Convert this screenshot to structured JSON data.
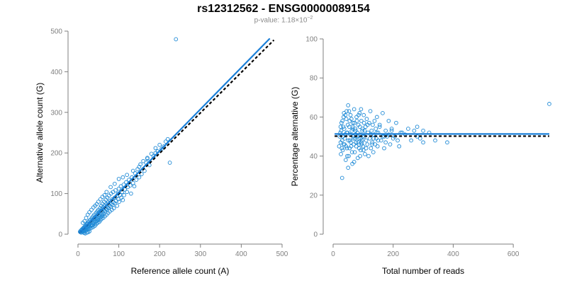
{
  "title": "rs12312562 - ENSG00000089154",
  "subtitle": {
    "prefix": "p-value: 1.18×10",
    "exponent": "−2"
  },
  "colors": {
    "points": "#1f8ad6",
    "fit_line": "#1a7fd8",
    "reference_line": "#000000",
    "axis": "#7f7f7f",
    "tick_label": "#808080"
  },
  "chart_data": [
    {
      "type": "scatter",
      "xlabel": "Reference allele count (A)",
      "ylabel": "Alternative allele count (G)",
      "xlim": [
        0,
        500
      ],
      "ylim": [
        0,
        500
      ],
      "xticks": [
        0,
        100,
        200,
        300,
        400,
        500
      ],
      "yticks": [
        0,
        100,
        200,
        300,
        400,
        500
      ],
      "grid": false,
      "points": [
        [
          5,
          6
        ],
        [
          6,
          5
        ],
        [
          7,
          9
        ],
        [
          8,
          4
        ],
        [
          9,
          10
        ],
        [
          10,
          7
        ],
        [
          10,
          12
        ],
        [
          11,
          8
        ],
        [
          12,
          14
        ],
        [
          12,
          6
        ],
        [
          13,
          11
        ],
        [
          14,
          9
        ],
        [
          14,
          16
        ],
        [
          15,
          12
        ],
        [
          15,
          6
        ],
        [
          16,
          18
        ],
        [
          17,
          13
        ],
        [
          17,
          8
        ],
        [
          18,
          20
        ],
        [
          18,
          15
        ],
        [
          19,
          10
        ],
        [
          20,
          22
        ],
        [
          20,
          14
        ],
        [
          21,
          17
        ],
        [
          22,
          25
        ],
        [
          22,
          11
        ],
        [
          23,
          19
        ],
        [
          24,
          27
        ],
        [
          24,
          15
        ],
        [
          25,
          21
        ],
        [
          26,
          12
        ],
        [
          26,
          30
        ],
        [
          27,
          23
        ],
        [
          28,
          18
        ],
        [
          28,
          33
        ],
        [
          29,
          25
        ],
        [
          30,
          14
        ],
        [
          30,
          28
        ],
        [
          31,
          36
        ],
        [
          32,
          20
        ],
        [
          32,
          30
        ],
        [
          33,
          24
        ],
        [
          34,
          40
        ],
        [
          34,
          16
        ],
        [
          35,
          28
        ],
        [
          36,
          35
        ],
        [
          36,
          22
        ],
        [
          37,
          44
        ],
        [
          38,
          30
        ],
        [
          38,
          18
        ],
        [
          39,
          38
        ],
        [
          40,
          26
        ],
        [
          40,
          48
        ],
        [
          41,
          33
        ],
        [
          42,
          21
        ],
        [
          42,
          42
        ],
        [
          43,
          30
        ],
        [
          44,
          52
        ],
        [
          44,
          36
        ],
        [
          45,
          25
        ],
        [
          46,
          45
        ],
        [
          46,
          32
        ],
        [
          47,
          56
        ],
        [
          48,
          40
        ],
        [
          48,
          28
        ],
        [
          49,
          50
        ],
        [
          50,
          35
        ],
        [
          50,
          60
        ],
        [
          51,
          44
        ],
        [
          52,
          30
        ],
        [
          52,
          54
        ],
        [
          53,
          40
        ],
        [
          54,
          64
        ],
        [
          54,
          46
        ],
        [
          55,
          34
        ],
        [
          56,
          58
        ],
        [
          56,
          42
        ],
        [
          57,
          70
        ],
        [
          58,
          50
        ],
        [
          58,
          38
        ],
        [
          59,
          62
        ],
        [
          60,
          46
        ],
        [
          60,
          75
        ],
        [
          61,
          54
        ],
        [
          62,
          40
        ],
        [
          62,
          66
        ],
        [
          63,
          50
        ],
        [
          64,
          80
        ],
        [
          65,
          58
        ],
        [
          66,
          44
        ],
        [
          66,
          70
        ],
        [
          67,
          56
        ],
        [
          68,
          85
        ],
        [
          69,
          62
        ],
        [
          70,
          48
        ],
        [
          70,
          74
        ],
        [
          71,
          60
        ],
        [
          72,
          90
        ],
        [
          73,
          66
        ],
        [
          74,
          52
        ],
        [
          74,
          78
        ],
        [
          75,
          64
        ],
        [
          76,
          95
        ],
        [
          77,
          70
        ],
        [
          78,
          56
        ],
        [
          79,
          82
        ],
        [
          80,
          68
        ],
        [
          81,
          100
        ],
        [
          82,
          74
        ],
        [
          83,
          60
        ],
        [
          84,
          86
        ],
        [
          85,
          72
        ],
        [
          86,
          104
        ],
        [
          87,
          78
        ],
        [
          88,
          64
        ],
        [
          90,
          90
        ],
        [
          91,
          76
        ],
        [
          92,
          108
        ],
        [
          93,
          82
        ],
        [
          95,
          94
        ],
        [
          96,
          70
        ],
        [
          98,
          100
        ],
        [
          99,
          86
        ],
        [
          100,
          112
        ],
        [
          101,
          80
        ],
        [
          103,
          96
        ],
        [
          105,
          118
        ],
        [
          106,
          90
        ],
        [
          108,
          104
        ],
        [
          110,
          84
        ],
        [
          112,
          122
        ],
        [
          113,
          96
        ],
        [
          115,
          110
        ],
        [
          118,
          128
        ],
        [
          120,
          104
        ],
        [
          122,
          116
        ],
        [
          125,
          134
        ],
        [
          128,
          120
        ],
        [
          130,
          100
        ],
        [
          132,
          140
        ],
        [
          135,
          126
        ],
        [
          138,
          118
        ],
        [
          140,
          150
        ],
        [
          143,
          134
        ],
        [
          146,
          160
        ],
        [
          150,
          140
        ],
        [
          153,
          172
        ],
        [
          156,
          148
        ],
        [
          160,
          180
        ],
        [
          163,
          156
        ],
        [
          167,
          176
        ],
        [
          170,
          186
        ],
        [
          175,
          170
        ],
        [
          180,
          198
        ],
        [
          185,
          192
        ],
        [
          190,
          212
        ],
        [
          195,
          204
        ],
        [
          200,
          220
        ],
        [
          205,
          210
        ],
        [
          210,
          216
        ],
        [
          215,
          228
        ],
        [
          220,
          234
        ],
        [
          225,
          176
        ],
        [
          240,
          480
        ],
        [
          15,
          3
        ],
        [
          18,
          2
        ],
        [
          22,
          4
        ],
        [
          25,
          5
        ],
        [
          28,
          7
        ],
        [
          12,
          28
        ],
        [
          16,
          32
        ],
        [
          20,
          40
        ],
        [
          24,
          48
        ],
        [
          28,
          54
        ],
        [
          33,
          60
        ],
        [
          38,
          66
        ],
        [
          42,
          70
        ],
        [
          46,
          74
        ],
        [
          50,
          80
        ],
        [
          55,
          86
        ],
        [
          60,
          92
        ],
        [
          65,
          96
        ],
        [
          70,
          104
        ],
        [
          80,
          116
        ],
        [
          90,
          124
        ],
        [
          100,
          136
        ],
        [
          110,
          140
        ],
        [
          120,
          146
        ],
        [
          135,
          156
        ],
        [
          150,
          166
        ],
        [
          170,
          188
        ],
        [
          190,
          200
        ]
      ],
      "fit_line": [
        [
          3,
          3
        ],
        [
          470,
          482
        ]
      ],
      "reference_line": [
        [
          3,
          3
        ],
        [
          480,
          478
        ]
      ]
    },
    {
      "type": "scatter",
      "xlabel": "Total number of reads",
      "ylabel": "Percentage alternative (G)",
      "xlim": [
        0,
        720
      ],
      "ylim": [
        0,
        100
      ],
      "xticks": [
        0,
        200,
        400,
        600
      ],
      "yticks": [
        0,
        20,
        40,
        60,
        80,
        100
      ],
      "grid": false,
      "points": [
        [
          720,
          66.7
        ],
        [
          30,
          28.8
        ],
        [
          50,
          34
        ],
        [
          70,
          37
        ],
        [
          90,
          40
        ],
        [
          110,
          44
        ],
        [
          130,
          46
        ],
        [
          150,
          48
        ],
        [
          170,
          50
        ],
        [
          25,
          55
        ],
        [
          35,
          60
        ],
        [
          45,
          63
        ],
        [
          55,
          58
        ],
        [
          65,
          54
        ],
        [
          75,
          51
        ],
        [
          85,
          49
        ],
        [
          95,
          47
        ],
        [
          105,
          53
        ],
        [
          115,
          56
        ],
        [
          125,
          51
        ],
        [
          135,
          49
        ],
        [
          145,
          52
        ],
        [
          155,
          55
        ],
        [
          165,
          50
        ],
        [
          175,
          47
        ],
        [
          185,
          51
        ],
        [
          195,
          53
        ],
        [
          205,
          50
        ],
        [
          215,
          48
        ],
        [
          225,
          52
        ],
        [
          20,
          45
        ],
        [
          22,
          50
        ],
        [
          24,
          52
        ],
        [
          26,
          41
        ],
        [
          28,
          57
        ],
        [
          30,
          48
        ],
        [
          32,
          43
        ],
        [
          34,
          55
        ],
        [
          36,
          62
        ],
        [
          38,
          46
        ],
        [
          40,
          51
        ],
        [
          42,
          38
        ],
        [
          44,
          59
        ],
        [
          46,
          44
        ],
        [
          48,
          52
        ],
        [
          50,
          66
        ],
        [
          52,
          40
        ],
        [
          54,
          55
        ],
        [
          56,
          48
        ],
        [
          58,
          61
        ],
        [
          60,
          45
        ],
        [
          62,
          53
        ],
        [
          64,
          36
        ],
        [
          66,
          57
        ],
        [
          68,
          49
        ],
        [
          70,
          64
        ],
        [
          72,
          42
        ],
        [
          74,
          54
        ],
        [
          76,
          47
        ],
        [
          78,
          60
        ],
        [
          80,
          50
        ],
        [
          82,
          39
        ],
        [
          84,
          56
        ],
        [
          86,
          46
        ],
        [
          88,
          62
        ],
        [
          90,
          51
        ],
        [
          92,
          43
        ],
        [
          94,
          58
        ],
        [
          96,
          48
        ],
        [
          98,
          54
        ],
        [
          100,
          45
        ],
        [
          102,
          61
        ],
        [
          104,
          50
        ],
        [
          106,
          41
        ],
        [
          108,
          55
        ],
        [
          110,
          48
        ],
        [
          112,
          59
        ],
        [
          114,
          46
        ],
        [
          116,
          52
        ],
        [
          118,
          40
        ],
        [
          120,
          57
        ],
        [
          122,
          49
        ],
        [
          124,
          63
        ],
        [
          126,
          44
        ],
        [
          128,
          53
        ],
        [
          130,
          47
        ],
        [
          132,
          56
        ],
        [
          134,
          42
        ],
        [
          136,
          51
        ],
        [
          138,
          58
        ],
        [
          140,
          46
        ],
        [
          142,
          54
        ],
        [
          144,
          49
        ],
        [
          146,
          60
        ],
        [
          148,
          45
        ],
        [
          150,
          52
        ],
        [
          155,
          56
        ],
        [
          160,
          48
        ],
        [
          165,
          62
        ],
        [
          170,
          44
        ],
        [
          175,
          53
        ],
        [
          180,
          50
        ],
        [
          185,
          58
        ],
        [
          190,
          46
        ],
        [
          195,
          54
        ],
        [
          200,
          49
        ],
        [
          210,
          57
        ],
        [
          220,
          45
        ],
        [
          230,
          52
        ],
        [
          240,
          51
        ],
        [
          250,
          54
        ],
        [
          260,
          48
        ],
        [
          270,
          53
        ],
        [
          280,
          50
        ],
        [
          290,
          49
        ],
        [
          300,
          47
        ],
        [
          320,
          52
        ],
        [
          340,
          48
        ],
        [
          380,
          47
        ],
        [
          280,
          55
        ],
        [
          300,
          53
        ],
        [
          25,
          47
        ],
        [
          27,
          53
        ],
        [
          29,
          44
        ],
        [
          31,
          58
        ],
        [
          33,
          50
        ],
        [
          35,
          46
        ],
        [
          37,
          54
        ],
        [
          39,
          49
        ],
        [
          41,
          61
        ],
        [
          43,
          45
        ],
        [
          45,
          52
        ],
        [
          47,
          40
        ],
        [
          49,
          56
        ],
        [
          51,
          48
        ],
        [
          53,
          63
        ],
        [
          55,
          44
        ],
        [
          57,
          51
        ],
        [
          59,
          47
        ],
        [
          61,
          59
        ],
        [
          63,
          42
        ],
        [
          65,
          55
        ],
        [
          67,
          50
        ],
        [
          69,
          46
        ],
        [
          71,
          57
        ],
        [
          73,
          49
        ],
        [
          75,
          53
        ],
        [
          77,
          45
        ],
        [
          79,
          58
        ],
        [
          81,
          52
        ],
        [
          83,
          47
        ],
        [
          85,
          61
        ],
        [
          87,
          44
        ],
        [
          89,
          55
        ],
        [
          91,
          49
        ],
        [
          93,
          64
        ],
        [
          95,
          46
        ],
        [
          97,
          53
        ],
        [
          99,
          50
        ],
        [
          101,
          43
        ],
        [
          103,
          57
        ]
      ],
      "fit_line": [
        [
          5,
          51.3
        ],
        [
          720,
          51.3
        ]
      ],
      "reference_line": [
        [
          5,
          50.2
        ],
        [
          720,
          50.2
        ]
      ]
    }
  ]
}
